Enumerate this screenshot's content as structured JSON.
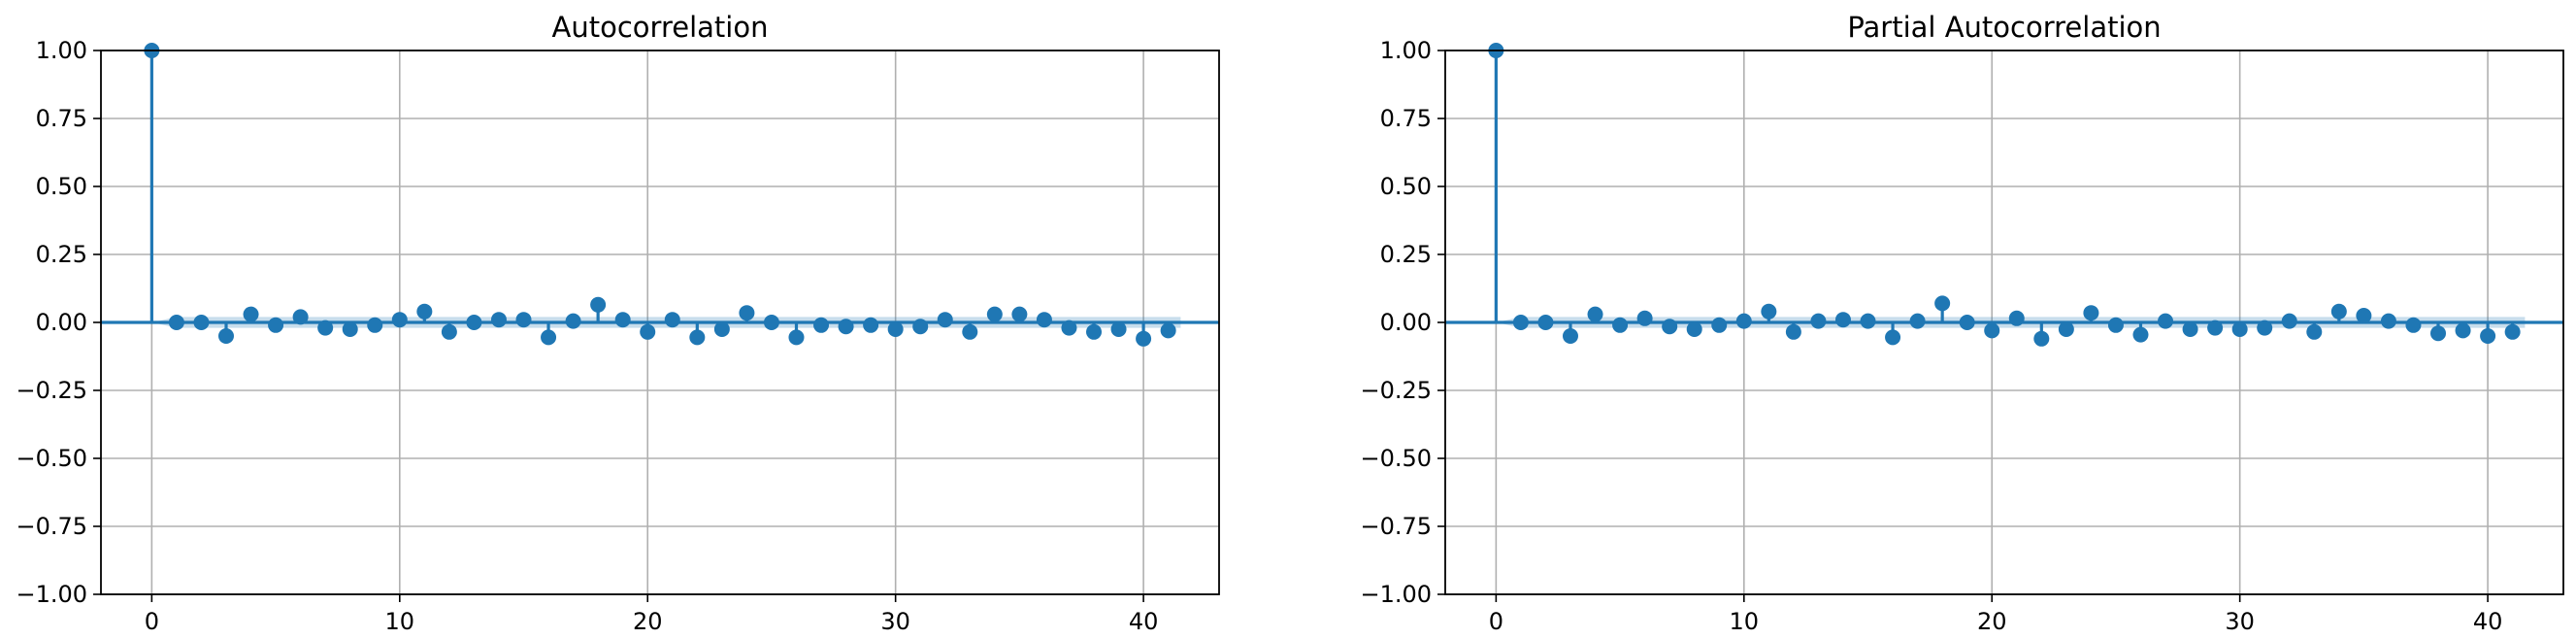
{
  "style": {
    "stem_color": "#1f77b4",
    "band_color": "#1f77b4",
    "grid_color": "#b0b0b0"
  },
  "chart_data": [
    {
      "type": "stem",
      "title": "Autocorrelation",
      "xlabel": "",
      "ylabel": "",
      "xlim": [
        -2.05,
        43.05
      ],
      "ylim": [
        -1.0,
        1.0
      ],
      "xticks": [
        0,
        10,
        20,
        30,
        40
      ],
      "yticks": [
        -1.0,
        -0.75,
        -0.5,
        -0.25,
        0.0,
        0.25,
        0.5,
        0.75,
        1.0
      ],
      "ytick_labels": [
        "−1.00",
        "−0.75",
        "−0.50",
        "−0.25",
        "0.00",
        "0.25",
        "0.50",
        "0.75",
        "1.00"
      ],
      "xtick_labels": [
        "0",
        "10",
        "20",
        "30",
        "40"
      ],
      "grid": true,
      "lags": [
        0,
        1,
        2,
        3,
        4,
        5,
        6,
        7,
        8,
        9,
        10,
        11,
        12,
        13,
        14,
        15,
        16,
        17,
        18,
        19,
        20,
        21,
        22,
        23,
        24,
        25,
        26,
        27,
        28,
        29,
        30,
        31,
        32,
        33,
        34,
        35,
        36,
        37,
        38,
        39,
        40,
        41
      ],
      "values": [
        1.0,
        0.0,
        0.0,
        -0.05,
        0.03,
        -0.01,
        0.02,
        -0.02,
        -0.025,
        -0.01,
        0.01,
        0.04,
        -0.035,
        0.0,
        0.01,
        0.01,
        -0.055,
        0.005,
        0.065,
        0.01,
        -0.035,
        0.01,
        -0.055,
        -0.025,
        0.035,
        0.0,
        -0.055,
        -0.01,
        -0.015,
        -0.01,
        -0.025,
        -0.015,
        0.01,
        -0.035,
        0.03,
        0.03,
        0.01,
        -0.02,
        -0.035,
        -0.025,
        -0.06,
        -0.03
      ],
      "confint": [
        0.0,
        0.02,
        0.02,
        0.02,
        0.02,
        0.02,
        0.02,
        0.02,
        0.02,
        0.02,
        0.02,
        0.02,
        0.02,
        0.02,
        0.02,
        0.02,
        0.02,
        0.02,
        0.02,
        0.02,
        0.02,
        0.02,
        0.02,
        0.02,
        0.02,
        0.02,
        0.02,
        0.02,
        0.02,
        0.02,
        0.02,
        0.02,
        0.02,
        0.02,
        0.02,
        0.02,
        0.02,
        0.02,
        0.02,
        0.02,
        0.02,
        0.02
      ]
    },
    {
      "type": "stem",
      "title": "Partial Autocorrelation",
      "xlabel": "",
      "ylabel": "",
      "xlim": [
        -2.05,
        43.05
      ],
      "ylim": [
        -1.0,
        1.0
      ],
      "xticks": [
        0,
        10,
        20,
        30,
        40
      ],
      "yticks": [
        -1.0,
        -0.75,
        -0.5,
        -0.25,
        0.0,
        0.25,
        0.5,
        0.75,
        1.0
      ],
      "ytick_labels": [
        "−1.00",
        "−0.75",
        "−0.50",
        "−0.25",
        "0.00",
        "0.25",
        "0.50",
        "0.75",
        "1.00"
      ],
      "xtick_labels": [
        "0",
        "10",
        "20",
        "30",
        "40"
      ],
      "grid": true,
      "lags": [
        0,
        1,
        2,
        3,
        4,
        5,
        6,
        7,
        8,
        9,
        10,
        11,
        12,
        13,
        14,
        15,
        16,
        17,
        18,
        19,
        20,
        21,
        22,
        23,
        24,
        25,
        26,
        27,
        28,
        29,
        30,
        31,
        32,
        33,
        34,
        35,
        36,
        37,
        38,
        39,
        40,
        41
      ],
      "values": [
        1.0,
        0.0,
        0.0,
        -0.05,
        0.03,
        -0.01,
        0.015,
        -0.015,
        -0.025,
        -0.01,
        0.005,
        0.04,
        -0.035,
        0.005,
        0.01,
        0.005,
        -0.055,
        0.005,
        0.07,
        0.0,
        -0.03,
        0.015,
        -0.06,
        -0.025,
        0.035,
        -0.01,
        -0.045,
        0.005,
        -0.025,
        -0.02,
        -0.025,
        -0.02,
        0.005,
        -0.035,
        0.04,
        0.025,
        0.005,
        -0.01,
        -0.04,
        -0.03,
        -0.05,
        -0.035
      ],
      "confint": [
        0.0,
        0.02,
        0.02,
        0.02,
        0.02,
        0.02,
        0.02,
        0.02,
        0.02,
        0.02,
        0.02,
        0.02,
        0.02,
        0.02,
        0.02,
        0.02,
        0.02,
        0.02,
        0.02,
        0.02,
        0.02,
        0.02,
        0.02,
        0.02,
        0.02,
        0.02,
        0.02,
        0.02,
        0.02,
        0.02,
        0.02,
        0.02,
        0.02,
        0.02,
        0.02,
        0.02,
        0.02,
        0.02,
        0.02,
        0.02,
        0.02,
        0.02
      ]
    }
  ]
}
